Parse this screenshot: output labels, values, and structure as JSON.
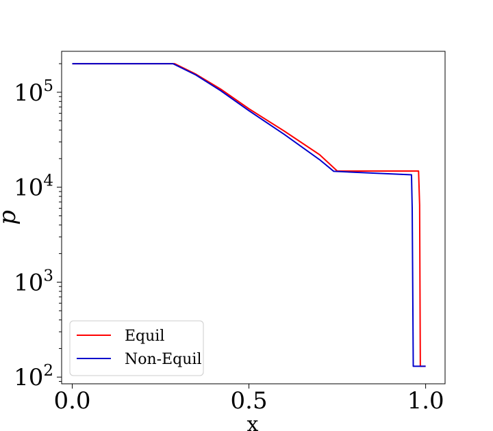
{
  "chart_data": {
    "type": "line",
    "xlabel": "x",
    "ylabel": "p",
    "yscale": "log",
    "xlim": [
      -0.03,
      1.055
    ],
    "ylim": [
      85,
      270000
    ],
    "xticks": [
      {
        "value": 0.0,
        "label": "0.0"
      },
      {
        "value": 0.5,
        "label": "0.5"
      },
      {
        "value": 1.0,
        "label": "1.0"
      }
    ],
    "yticks": [
      {
        "value": 100,
        "base": "10",
        "exp": "2"
      },
      {
        "value": 1000,
        "base": "10",
        "exp": "3"
      },
      {
        "value": 10000,
        "base": "10",
        "exp": "4"
      },
      {
        "value": 100000,
        "base": "10",
        "exp": "5"
      }
    ],
    "grid": false,
    "legend_position": "lower-left",
    "series": [
      {
        "name": "Equil",
        "color": "#ff0000",
        "points": [
          [
            0.0,
            200000
          ],
          [
            0.29,
            200000
          ],
          [
            0.35,
            155000
          ],
          [
            0.42,
            108000
          ],
          [
            0.5,
            67000
          ],
          [
            0.6,
            39000
          ],
          [
            0.7,
            22000
          ],
          [
            0.75,
            14800
          ],
          [
            0.98,
            14800
          ],
          [
            0.983,
            6500
          ],
          [
            0.985,
            130
          ],
          [
            1.0,
            130
          ]
        ]
      },
      {
        "name": "Non-Equil",
        "color": "#0000cc",
        "points": [
          [
            0.0,
            200000
          ],
          [
            0.285,
            200000
          ],
          [
            0.35,
            152000
          ],
          [
            0.42,
            104000
          ],
          [
            0.5,
            64000
          ],
          [
            0.6,
            36000
          ],
          [
            0.7,
            19500
          ],
          [
            0.74,
            14700
          ],
          [
            0.96,
            13500
          ],
          [
            0.962,
            6000
          ],
          [
            0.965,
            130
          ],
          [
            1.0,
            130
          ]
        ]
      }
    ]
  }
}
